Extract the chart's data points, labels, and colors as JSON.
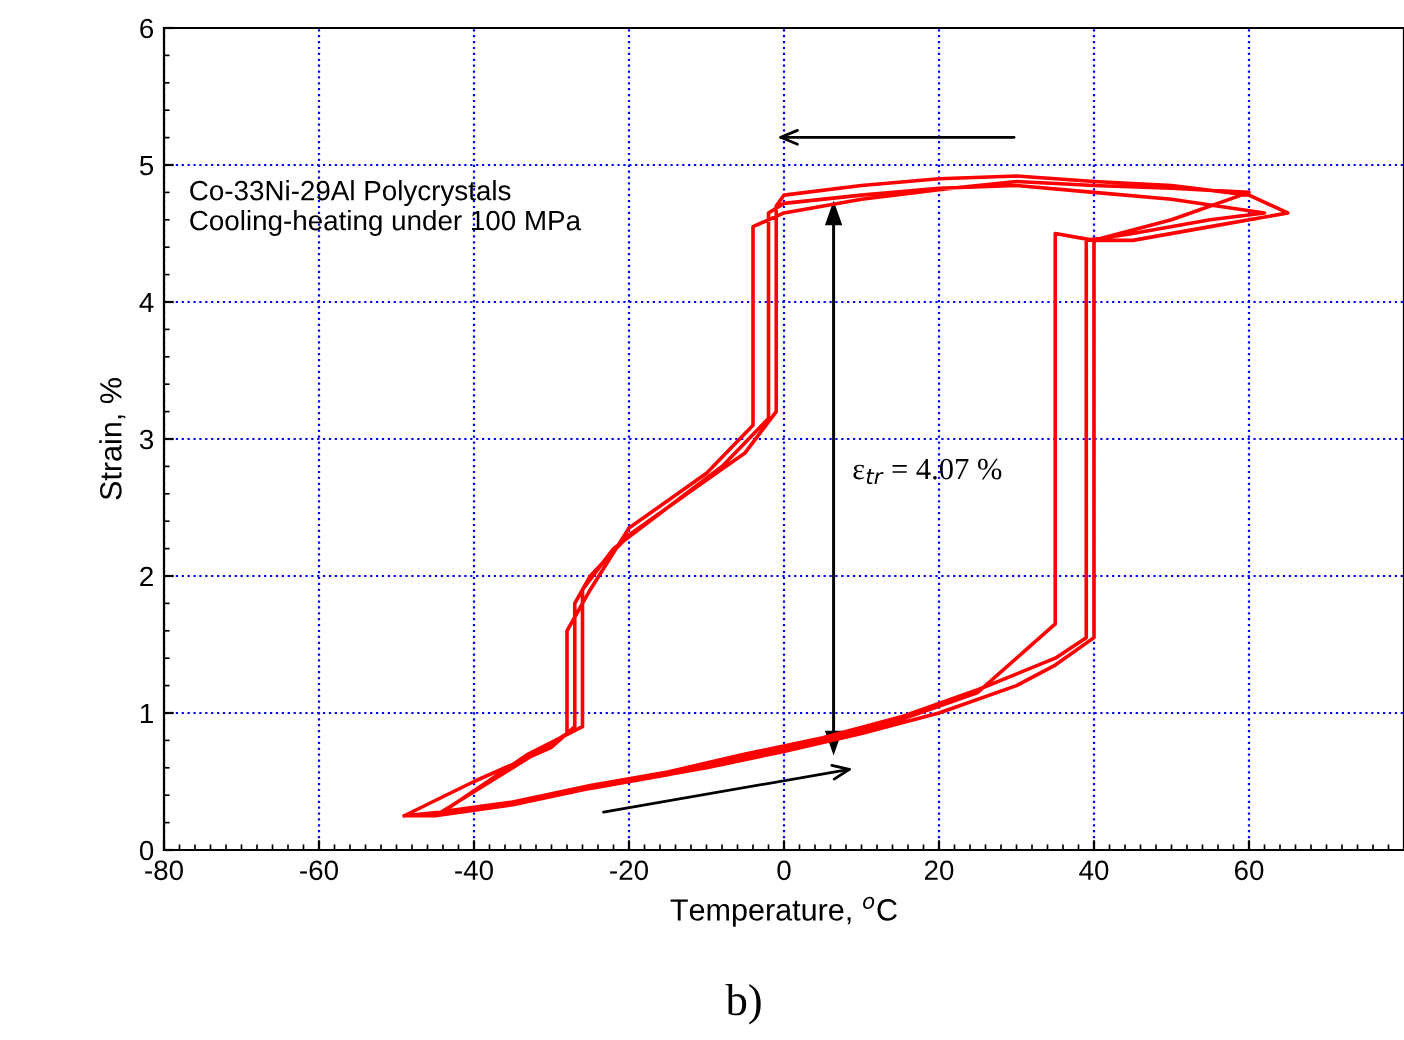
{
  "chart_data": {
    "type": "line",
    "xlabel": "Temperature, $^{o}$C",
    "ylabel": "Strain, %",
    "series": [
      {
        "color": "#ff0000",
        "x": [
          -49,
          -40,
          -30,
          -20,
          -10,
          0,
          10,
          20,
          30,
          35,
          40,
          40,
          45,
          55,
          65,
          60,
          50,
          40,
          30,
          20,
          10,
          0,
          -1,
          -1,
          -5,
          -10,
          -15,
          -20,
          -25,
          -27,
          -27,
          -30,
          -40,
          -49,
          -45,
          -35,
          -25,
          -15,
          -5,
          5,
          15,
          25,
          35,
          35,
          40,
          50,
          60,
          50,
          40,
          30,
          20,
          10,
          0,
          -4,
          -4,
          -10,
          -20,
          -25,
          -28,
          -28,
          -35,
          -45,
          -44,
          -35,
          -25,
          -15,
          -5,
          5,
          15,
          25,
          35,
          39,
          39,
          45,
          55,
          62,
          50,
          40,
          30,
          20,
          10,
          0,
          -2,
          -2,
          -8,
          -15,
          -22,
          -26,
          -26,
          -33,
          -44
        ],
        "values": [
          0.25,
          0.3,
          0.4,
          0.5,
          0.6,
          0.72,
          0.85,
          1.0,
          1.2,
          1.35,
          1.55,
          4.45,
          4.45,
          4.55,
          4.65,
          4.78,
          4.85,
          4.88,
          4.92,
          4.9,
          4.85,
          4.78,
          4.7,
          3.2,
          2.9,
          2.7,
          2.5,
          2.3,
          2.0,
          1.8,
          0.9,
          0.75,
          0.5,
          0.25,
          0.25,
          0.33,
          0.45,
          0.55,
          0.68,
          0.8,
          0.95,
          1.15,
          1.65,
          4.5,
          4.45,
          4.6,
          4.8,
          4.83,
          4.85,
          4.88,
          4.82,
          4.75,
          4.65,
          4.55,
          3.1,
          2.75,
          2.35,
          1.9,
          1.6,
          0.85,
          0.6,
          0.25,
          0.28,
          0.35,
          0.47,
          0.57,
          0.7,
          0.82,
          0.97,
          1.17,
          1.4,
          1.55,
          4.45,
          4.5,
          4.6,
          4.65,
          4.75,
          4.8,
          4.85,
          4.83,
          4.78,
          4.72,
          4.65,
          3.15,
          2.8,
          2.5,
          2.2,
          1.9,
          0.9,
          0.7,
          0.28
        ]
      }
    ],
    "xlim": [
      -80,
      80
    ],
    "xticks": [
      -80,
      -60,
      -40,
      -20,
      0,
      20,
      40,
      60
    ],
    "ylim": [
      0,
      6
    ],
    "yticks": [
      0,
      1,
      2,
      3,
      4,
      5,
      6
    ],
    "grid": true,
    "line_style": "solid",
    "marker": "none",
    "annotations": [
      "Co-33Ni-29Al Polycrystals\nCooling-heating under 100 MPa",
      "ε$_{tr}$ = 4.07 %",
      "b)"
    ]
  }
}
